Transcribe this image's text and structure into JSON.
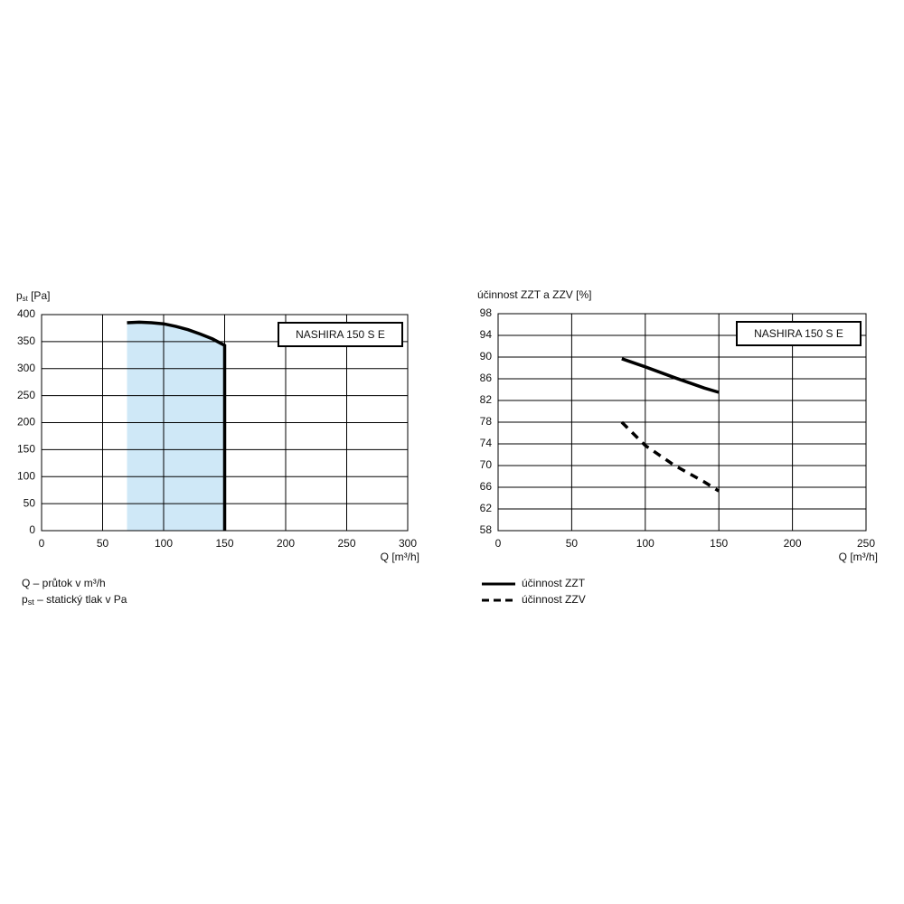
{
  "chart_data": [
    {
      "type": "area",
      "ylabel": [
        "p",
        "st",
        " [Pa]"
      ],
      "xlabel": "Q [m³/h]",
      "annotation": "NASHIRA 150 S E",
      "xlim": [
        0,
        300
      ],
      "xticks": [
        0,
        50,
        100,
        150,
        200,
        250,
        300
      ],
      "ylim": [
        0,
        400
      ],
      "yticks": [
        0,
        50,
        100,
        150,
        200,
        250,
        300,
        350,
        400
      ],
      "grid": true,
      "series": [
        {
          "color": "#000000",
          "fill": "#cfe8f7",
          "x": [
            70,
            80,
            90,
            100,
            110,
            120,
            130,
            140,
            150,
            150
          ],
          "values": [
            385,
            386,
            385,
            383,
            378,
            372,
            364,
            355,
            343,
            0
          ]
        }
      ],
      "notes": [
        [
          "Q – průtok v m³/h"
        ],
        [
          "p",
          "st",
          " – statický tlak v Pa"
        ]
      ]
    },
    {
      "type": "line",
      "ylabel": [
        "účinnost ZZT a ZZV [%]"
      ],
      "xlabel": "Q [m³/h]",
      "annotation": "NASHIRA 150 S E",
      "xlim": [
        0,
        250
      ],
      "xticks": [
        0,
        50,
        100,
        150,
        200,
        250
      ],
      "ylim": [
        58,
        98
      ],
      "yticks": [
        58,
        62,
        66,
        70,
        74,
        78,
        82,
        86,
        90,
        94,
        98
      ],
      "grid": true,
      "legend": "bottom-left",
      "series": [
        {
          "name": "účinnost ZZT",
          "color": "#000000",
          "dash": false,
          "x": [
            84,
            100,
            120,
            140,
            150
          ],
          "values": [
            89.7,
            88.2,
            86.2,
            84.3,
            83.5
          ]
        },
        {
          "name": "účinnost ZZV",
          "color": "#000000",
          "dash": true,
          "x": [
            84,
            100,
            120,
            140,
            150
          ],
          "values": [
            78,
            73.7,
            70,
            67,
            65.3
          ]
        }
      ]
    }
  ]
}
